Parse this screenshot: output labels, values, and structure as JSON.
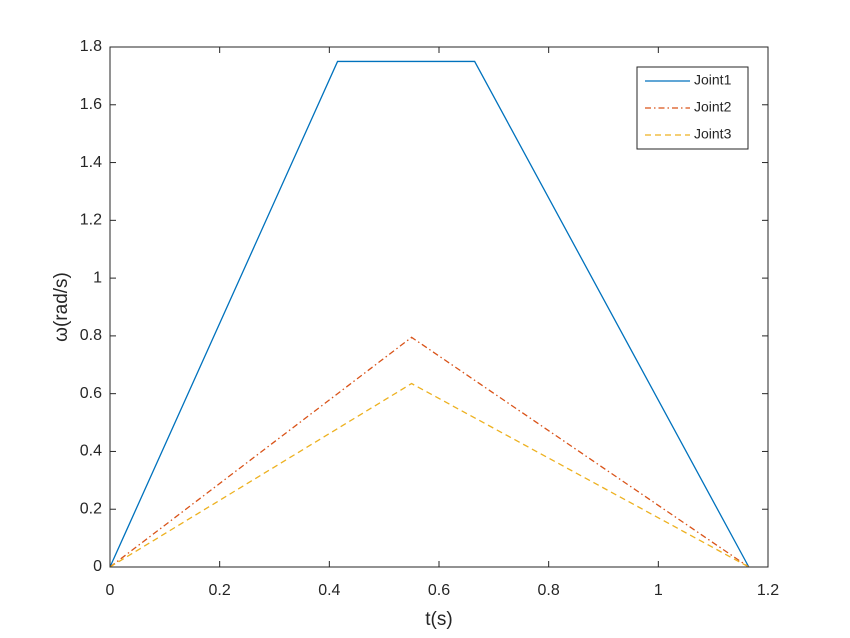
{
  "chart_data": {
    "type": "line",
    "xlabel": "t(s)",
    "ylabel": "ω(rad/s)",
    "xlim": [
      0,
      1.2
    ],
    "ylim": [
      0,
      1.8
    ],
    "xticks": [
      0,
      0.2,
      0.4,
      0.6,
      0.8,
      1,
      1.2
    ],
    "yticks": [
      0,
      0.2,
      0.4,
      0.6,
      0.8,
      1,
      1.2,
      1.4,
      1.6,
      1.8
    ],
    "grid": false,
    "legend": "northeast",
    "series": [
      {
        "name": "Joint1",
        "color": "#0072bd",
        "linestyle": "solid",
        "x": [
          0,
          0.415,
          0.665,
          1.165
        ],
        "values": [
          0,
          1.75,
          1.75,
          0
        ]
      },
      {
        "name": "Joint2",
        "color": "#d95319",
        "linestyle": "dashdot",
        "x": [
          0,
          0.55,
          1.165
        ],
        "values": [
          0,
          0.795,
          0
        ]
      },
      {
        "name": "Joint3",
        "color": "#edb120",
        "linestyle": "dashed",
        "x": [
          0,
          0.55,
          1.165
        ],
        "values": [
          0,
          0.635,
          0
        ]
      }
    ]
  }
}
